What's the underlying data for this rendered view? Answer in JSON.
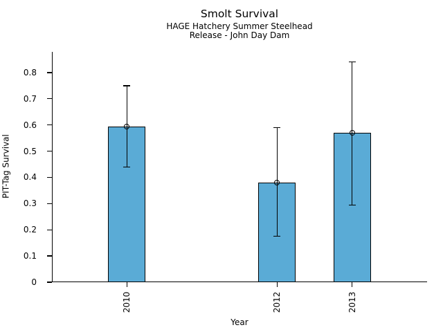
{
  "chart_data": {
    "type": "bar",
    "title": "Smolt Survival",
    "subtitle_lines": [
      "HAGE Hatchery Summer Steelhead",
      "Release - John Day Dam"
    ],
    "xlabel": "Year",
    "ylabel": "PIT-Tag Survival",
    "categories": [
      "2010",
      "2012",
      "2013"
    ],
    "x_values": [
      2010,
      2012,
      2013
    ],
    "values": [
      0.595,
      0.38,
      0.57
    ],
    "ci_low": [
      0.44,
      0.175,
      0.295
    ],
    "ci_high": [
      0.75,
      0.59,
      0.84
    ],
    "xlim": [
      2009,
      2014
    ],
    "ylim": [
      0,
      0.879
    ],
    "yticks": [
      0,
      0.1,
      0.2,
      0.3,
      0.4,
      0.5,
      0.6,
      0.7,
      0.8
    ],
    "ytick_labels": [
      "0",
      "0.1",
      "0.2",
      "0.3",
      "0.4",
      "0.5",
      "0.6",
      "0.7",
      "0.8"
    ],
    "bar_width_x": 0.5,
    "marker": "open-circle",
    "grid": false,
    "legend": false,
    "colors": {
      "bar_fill": "#5aabd6",
      "bar_edge": "#000000",
      "error_bar": "#000000",
      "text": "#000000",
      "background": "#ffffff"
    }
  }
}
